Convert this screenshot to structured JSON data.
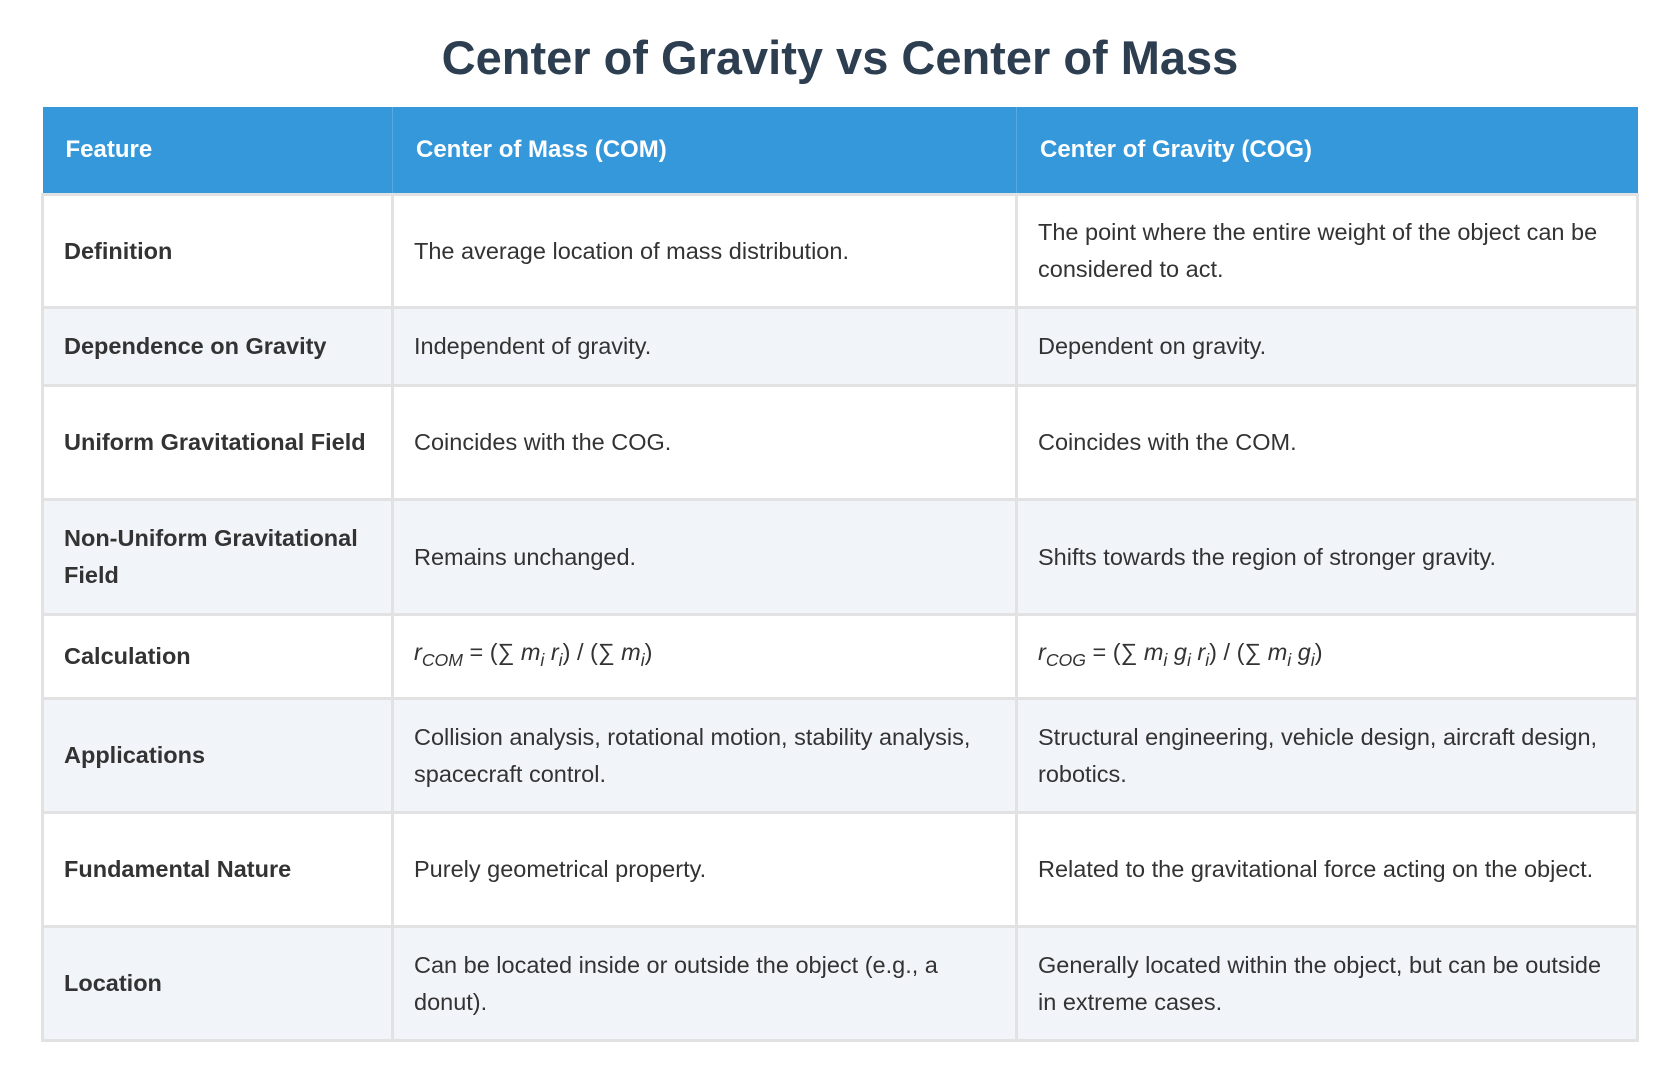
{
  "title": "Center of Gravity vs Center of Mass",
  "headers": [
    "Feature",
    "Center of Mass (COM)",
    "Center of Gravity (COG)"
  ],
  "rows": [
    {
      "feature": "Definition",
      "com": "The average location of mass distribution.",
      "cog": "The point where the entire weight of the object can be considered to act."
    },
    {
      "feature": "Dependence on Gravity",
      "com": "Independent of gravity.",
      "cog": "Dependent on gravity."
    },
    {
      "feature": "Uniform Gravitational Field",
      "com": "Coincides with the COG.",
      "cog": "Coincides with the COM."
    },
    {
      "feature": "Non-Uniform Gravitational Field",
      "com": "Remains unchanged.",
      "cog": "Shifts towards the region of stronger gravity."
    },
    {
      "feature": "Calculation",
      "com": "r_COM = (∑ m_i r_i) / (∑ m_i)",
      "cog": "r_COG = (∑ m_i g_i r_i) / (∑ m_i g_i)"
    },
    {
      "feature": "Applications",
      "com": "Collision analysis, rotational motion, stability analysis, spacecraft control.",
      "cog": "Structural engineering, vehicle design, aircraft design, robotics."
    },
    {
      "feature": "Fundamental Nature",
      "com": "Purely geometrical property.",
      "cog": "Related to the gravitational force acting on the object."
    },
    {
      "feature": "Location",
      "com": "Can be located inside or outside the object (e.g., a donut).",
      "cog": "Generally located within the object, but can be outside in extreme cases."
    }
  ],
  "colors": {
    "header_bg": "#3498db",
    "title": "#2c3e50",
    "alt_row": "#f1f4f8"
  }
}
